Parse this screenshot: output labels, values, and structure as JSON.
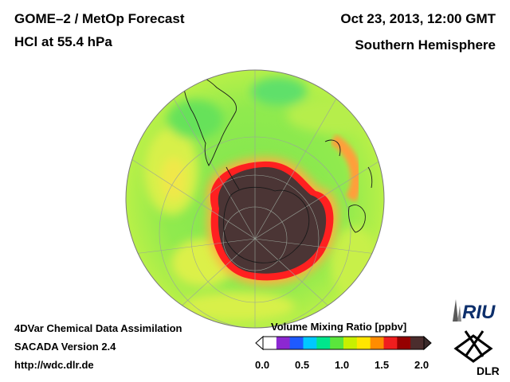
{
  "header": {
    "title_left_line1": "GOME–2 / MetOp Forecast",
    "title_left_line2": "HCl at 55.4 hPa",
    "title_right_line1": "Oct 23, 2013, 12:00 GMT",
    "title_right_line2": "Southern Hemisphere"
  },
  "footer": {
    "line1": "4DVar Chemical Data Assimilation",
    "line2": "SACADA Version 2.4",
    "line3": "http://wdc.dlr.de"
  },
  "colorbar": {
    "title": "Volume Mixing Ratio [ppbv]",
    "ticks": [
      "0.0",
      "0.5",
      "1.0",
      "1.5",
      "2.0"
    ],
    "colors": [
      "#ffffff",
      "#8c28d2",
      "#1e5aff",
      "#00c8ff",
      "#00e68c",
      "#5ae63c",
      "#c8f000",
      "#ffe600",
      "#ff8c00",
      "#f01e1e",
      "#960000",
      "#4b2d2d"
    ]
  },
  "map": {
    "projection": "orthographic, South Pole centered",
    "colors": {
      "hole": "#4b3535",
      "edge_red": "#ff1e1e",
      "ring_orange": "#ff9a3c",
      "green": "#78e650",
      "yellow": "#f0f04a",
      "ocean_lime": "#a6f050"
    }
  },
  "logos": {
    "riu_text": "RIU",
    "dlr_text": "DLR"
  }
}
